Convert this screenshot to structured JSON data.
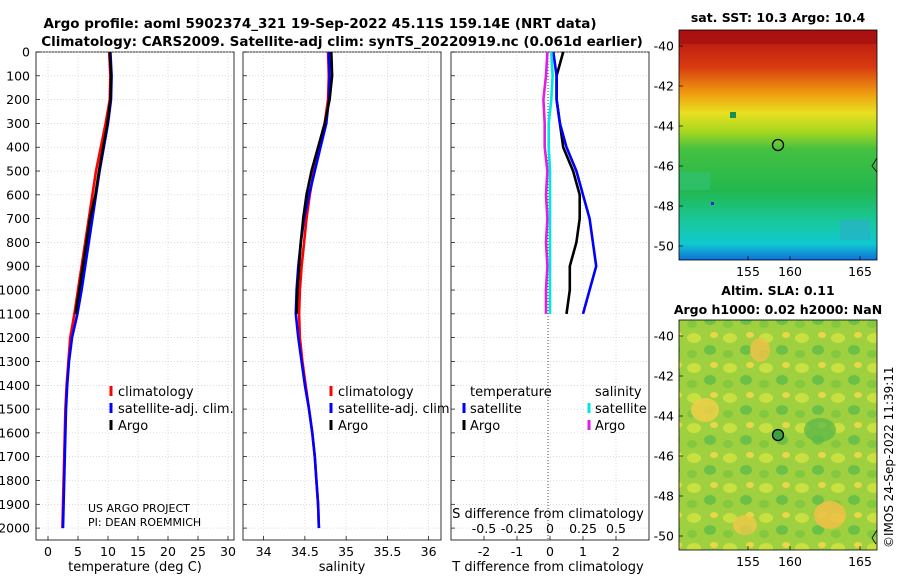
{
  "title": {
    "line1": "Argo profile: aoml 5902374_321 19-Sep-2022 45.11S 159.14E (NRT data)",
    "line2": "Climatology: CARS2009. Satellite-adj clim: synTS_20220919.nc (0.061d earlier)"
  },
  "colors": {
    "climatology": "#ff0000",
    "satellite": "#0000ff",
    "argo": "#000000",
    "sat_s": "#00e5e5",
    "argo_s": "#e020e0"
  },
  "depth_axis": {
    "range": [
      0,
      2050
    ],
    "ticks": [
      0,
      100,
      200,
      300,
      400,
      500,
      600,
      700,
      800,
      900,
      1000,
      1100,
      1200,
      1300,
      1400,
      1500,
      1600,
      1700,
      1800,
      1900,
      2000
    ]
  },
  "chart_data": [
    {
      "type": "line",
      "xlabel": "temperature (deg C)",
      "xlim": [
        -2,
        31
      ],
      "xticks": [
        0,
        5,
        10,
        15,
        20,
        25,
        30
      ],
      "depth": [
        0,
        100,
        200,
        300,
        400,
        500,
        600,
        700,
        800,
        900,
        1000,
        1100,
        1200,
        1300,
        1400,
        1500,
        1600,
        1700,
        1800,
        1900,
        2000
      ],
      "series": [
        {
          "name": "climatology",
          "values": [
            10.2,
            10.4,
            10.3,
            9.6,
            8.8,
            8.0,
            7.4,
            6.8,
            6.2,
            5.6,
            5.0,
            4.4,
            3.7,
            3.4,
            3.1,
            2.9,
            2.8,
            2.7,
            2.6,
            2.5,
            2.4
          ]
        },
        {
          "name": "satellite-adj. clim.",
          "values": [
            10.4,
            10.6,
            10.5,
            10.0,
            9.3,
            8.6,
            8.0,
            7.4,
            6.8,
            6.2,
            5.6,
            4.9,
            4.0,
            3.5,
            3.2,
            3.0,
            2.9,
            2.8,
            2.7,
            2.6,
            2.5
          ]
        },
        {
          "name": "Argo",
          "values": [
            10.3,
            10.5,
            10.4,
            9.9,
            9.2,
            8.5,
            7.9,
            7.0,
            6.4,
            5.8,
            5.2,
            4.6
          ]
        }
      ],
      "legend": [
        "climatology",
        "satellite-adj. clim.",
        "Argo"
      ],
      "annotation": [
        "US ARGO PROJECT",
        "PI: DEAN ROEMMICH"
      ]
    },
    {
      "type": "line",
      "xlabel": "salinity",
      "xlim": [
        33.75,
        36.15
      ],
      "xticks": [
        "34",
        "34.5",
        "35",
        "35.5",
        "36"
      ],
      "depth": [
        0,
        100,
        200,
        300,
        400,
        500,
        600,
        700,
        800,
        900,
        1000,
        1100,
        1200,
        1300,
        1400,
        1500,
        1600,
        1700,
        1800,
        1900,
        2000
      ],
      "series": [
        {
          "name": "climatology",
          "values": [
            34.78,
            34.79,
            34.78,
            34.74,
            34.67,
            34.61,
            34.56,
            34.52,
            34.49,
            34.46,
            34.44,
            34.43,
            34.44,
            34.47,
            34.51,
            34.55,
            34.59,
            34.62,
            34.64,
            34.66,
            34.67
          ]
        },
        {
          "name": "satellite-adj. clim.",
          "values": [
            34.79,
            34.8,
            34.79,
            34.76,
            34.69,
            34.62,
            34.55,
            34.49,
            34.45,
            34.42,
            34.4,
            34.39,
            34.42,
            34.46,
            34.5,
            34.55,
            34.59,
            34.62,
            34.64,
            34.66,
            34.67
          ]
        },
        {
          "name": "Argo",
          "values": [
            34.82,
            34.83,
            34.8,
            34.74,
            34.66,
            34.58,
            34.52,
            34.48,
            34.45,
            34.43,
            34.41,
            34.4
          ]
        }
      ],
      "legend": [
        "climatology",
        "satellite-adj. clim.",
        "Argo"
      ]
    },
    {
      "type": "line",
      "xlabel": "T difference from climatology",
      "xlabel_top": "S difference from climatology",
      "xlim": [
        -3,
        3
      ],
      "xticks": [
        "-2",
        "-1",
        "0",
        "1",
        "2"
      ],
      "xticks_top": [
        "-0.5",
        "-0.25",
        "0",
        "0.25",
        "0.5"
      ],
      "depth": [
        0,
        100,
        200,
        300,
        400,
        500,
        600,
        700,
        800,
        900,
        1000,
        1100
      ],
      "series": [
        {
          "name": "temperature Argo",
          "values": [
            0.4,
            0.2,
            0.2,
            0.3,
            0.4,
            0.7,
            0.9,
            0.9,
            0.8,
            0.6,
            0.6,
            0.5
          ]
        },
        {
          "name": "temperature satellite",
          "values": [
            0.1,
            0.2,
            0.2,
            0.3,
            0.5,
            0.8,
            1.0,
            1.2,
            1.3,
            1.4,
            1.2,
            1.0
          ]
        },
        {
          "name": "salinity satellite",
          "values": [
            0.01,
            0.02,
            0.01,
            -0.01,
            -0.01,
            0,
            0,
            0,
            0,
            0,
            0,
            0
          ]
        },
        {
          "name": "salinity Argo",
          "values": [
            -0.02,
            -0.03,
            -0.05,
            -0.04,
            -0.04,
            -0.02,
            -0.03,
            -0.02,
            -0.03,
            -0.02,
            -0.03,
            -0.03
          ]
        }
      ],
      "legend_temperature": {
        "header": "temperature",
        "items": [
          "satellite",
          "Argo"
        ]
      },
      "legend_salinity": {
        "header": "salinity",
        "items": [
          "satellite",
          "Argo"
        ]
      }
    },
    {
      "type": "heatmap",
      "title": "sat. SST: 10.3 Argo: 10.4",
      "xticks": [
        "155",
        "160",
        "165"
      ],
      "yticks": [
        "-40",
        "-42",
        "-44",
        "-46",
        "-48",
        "-50"
      ]
    },
    {
      "type": "heatmap",
      "title_line1": "Altim. SLA: 0.11",
      "title_line2": "Argo h1000: 0.02 h2000: NaN",
      "xticks": [
        "155",
        "160",
        "165"
      ],
      "yticks": [
        "-40",
        "-42",
        "-44",
        "-46",
        "-48",
        "-50"
      ]
    }
  ],
  "watermark": "©IMOS 24-Sep-2022 11:39:11"
}
